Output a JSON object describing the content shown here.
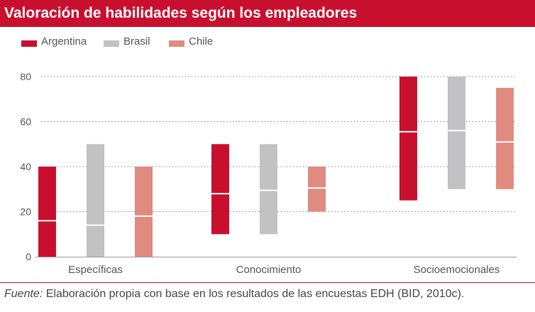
{
  "title": "Valoración de habilidades según los empleadores",
  "caption": {
    "prefix": "Fuente:",
    "text": " Elaboración propia con base en los resultados de las encuestas EDH (BID, 2010c)."
  },
  "colors": {
    "brand": "#c8102e",
    "Argentina": "#c8102e",
    "Brasil": "#c2c2c4",
    "Chile": "#e08b80",
    "grid": "#888888",
    "median_line": "#ffffff"
  },
  "chart_data": {
    "type": "bar",
    "subtype": "floating-range with median marker",
    "categories": [
      "Específicas",
      "Conocimiento",
      "Socioemocionales"
    ],
    "ylim": [
      0,
      80
    ],
    "yticks": [
      0,
      20,
      40,
      60,
      80
    ],
    "grid": true,
    "legend_position": "top-left",
    "xlabel": "",
    "ylabel": "",
    "series": [
      {
        "name": "Argentina",
        "low": [
          0,
          10,
          25
        ],
        "high": [
          40,
          50,
          80
        ],
        "median": [
          16,
          28,
          55.5
        ]
      },
      {
        "name": "Brasil",
        "low": [
          0,
          10,
          30
        ],
        "high": [
          50,
          50,
          80
        ],
        "median": [
          14,
          29.5,
          56
        ]
      },
      {
        "name": "Chile",
        "low": [
          0,
          20,
          30
        ],
        "high": [
          40,
          40,
          75
        ],
        "median": [
          18,
          30.5,
          51
        ]
      }
    ]
  }
}
